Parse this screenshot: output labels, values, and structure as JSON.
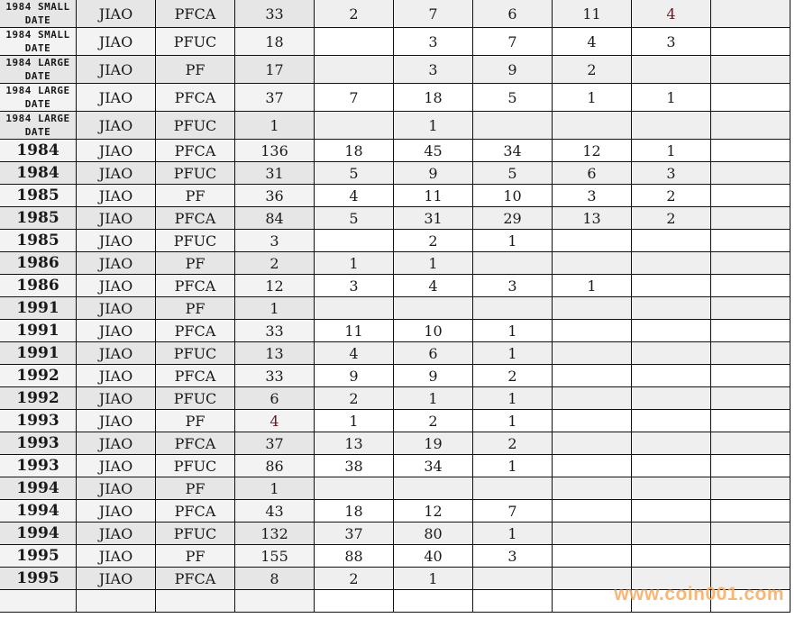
{
  "table": {
    "rows": [
      {
        "cells": [
          "1984 SMALL DATE",
          "JIAO",
          "PFCA",
          "33",
          "2",
          "7",
          "6",
          "11",
          "4",
          ""
        ],
        "red": [
          8
        ]
      },
      {
        "cells": [
          "1984 SMALL DATE",
          "JIAO",
          "PFUC",
          "18",
          "",
          "3",
          "7",
          "4",
          "3",
          ""
        ]
      },
      {
        "cells": [
          "1984 LARGE DATE",
          "JIAO",
          "PF",
          "17",
          "",
          "3",
          "9",
          "2",
          "",
          ""
        ]
      },
      {
        "cells": [
          "1984 LARGE DATE",
          "JIAO",
          "PFCA",
          "37",
          "7",
          "18",
          "5",
          "1",
          "1",
          ""
        ]
      },
      {
        "cells": [
          "1984 LARGE DATE",
          "JIAO",
          "PFUC",
          "1",
          "",
          "1",
          "",
          "",
          "",
          ""
        ]
      },
      {
        "cells": [
          "1984",
          "JIAO",
          "PFCA",
          "136",
          "18",
          "45",
          "34",
          "12",
          "1",
          ""
        ]
      },
      {
        "cells": [
          "1984",
          "JIAO",
          "PFUC",
          "31",
          "5",
          "9",
          "5",
          "6",
          "3",
          ""
        ]
      },
      {
        "cells": [
          "1985",
          "JIAO",
          "PF",
          "36",
          "4",
          "11",
          "10",
          "3",
          "2",
          ""
        ]
      },
      {
        "cells": [
          "1985",
          "JIAO",
          "PFCA",
          "84",
          "5",
          "31",
          "29",
          "13",
          "2",
          ""
        ]
      },
      {
        "cells": [
          "1985",
          "JIAO",
          "PFUC",
          "3",
          "",
          "2",
          "1",
          "",
          "",
          ""
        ]
      },
      {
        "cells": [
          "1986",
          "JIAO",
          "PF",
          "2",
          "1",
          "1",
          "",
          "",
          "",
          ""
        ]
      },
      {
        "cells": [
          "1986",
          "JIAO",
          "PFCA",
          "12",
          "3",
          "4",
          "3",
          "1",
          "",
          ""
        ]
      },
      {
        "cells": [
          "1991",
          "JIAO",
          "PF",
          "1",
          "",
          "",
          "",
          "",
          "",
          ""
        ]
      },
      {
        "cells": [
          "1991",
          "JIAO",
          "PFCA",
          "33",
          "11",
          "10",
          "1",
          "",
          "",
          ""
        ]
      },
      {
        "cells": [
          "1991",
          "JIAO",
          "PFUC",
          "13",
          "4",
          "6",
          "1",
          "",
          "",
          ""
        ]
      },
      {
        "cells": [
          "1992",
          "JIAO",
          "PFCA",
          "33",
          "9",
          "9",
          "2",
          "",
          "",
          ""
        ]
      },
      {
        "cells": [
          "1992",
          "JIAO",
          "PFUC",
          "6",
          "2",
          "1",
          "1",
          "",
          "",
          ""
        ]
      },
      {
        "cells": [
          "1993",
          "JIAO",
          "PF",
          "4",
          "1",
          "2",
          "1",
          "",
          "",
          ""
        ],
        "red": [
          3
        ]
      },
      {
        "cells": [
          "1993",
          "JIAO",
          "PFCA",
          "37",
          "13",
          "19",
          "2",
          "",
          "",
          ""
        ]
      },
      {
        "cells": [
          "1993",
          "JIAO",
          "PFUC",
          "86",
          "38",
          "34",
          "1",
          "",
          "",
          ""
        ]
      },
      {
        "cells": [
          "1994",
          "JIAO",
          "PF",
          "1",
          "",
          "",
          "",
          "",
          "",
          ""
        ]
      },
      {
        "cells": [
          "1994",
          "JIAO",
          "PFCA",
          "43",
          "18",
          "12",
          "7",
          "",
          "",
          ""
        ]
      },
      {
        "cells": [
          "1994",
          "JIAO",
          "PFUC",
          "132",
          "37",
          "80",
          "1",
          "",
          "",
          ""
        ]
      },
      {
        "cells": [
          "1995",
          "JIAO",
          "PF",
          "155",
          "88",
          "40",
          "3",
          "",
          "",
          ""
        ]
      },
      {
        "cells": [
          "1995",
          "JIAO",
          "PFCA",
          "8",
          "2",
          "1",
          "",
          "",
          "",
          ""
        ]
      },
      {
        "cells": [
          "",
          "",
          "",
          "",
          "",
          "",
          "",
          "",
          "",
          ""
        ]
      }
    ]
  },
  "watermark": "www.coin001.com",
  "colors": {
    "grid": "#111111",
    "row_alt": "#efefef",
    "highlight_text": "#7a1020",
    "watermark": "#f6b06a"
  }
}
